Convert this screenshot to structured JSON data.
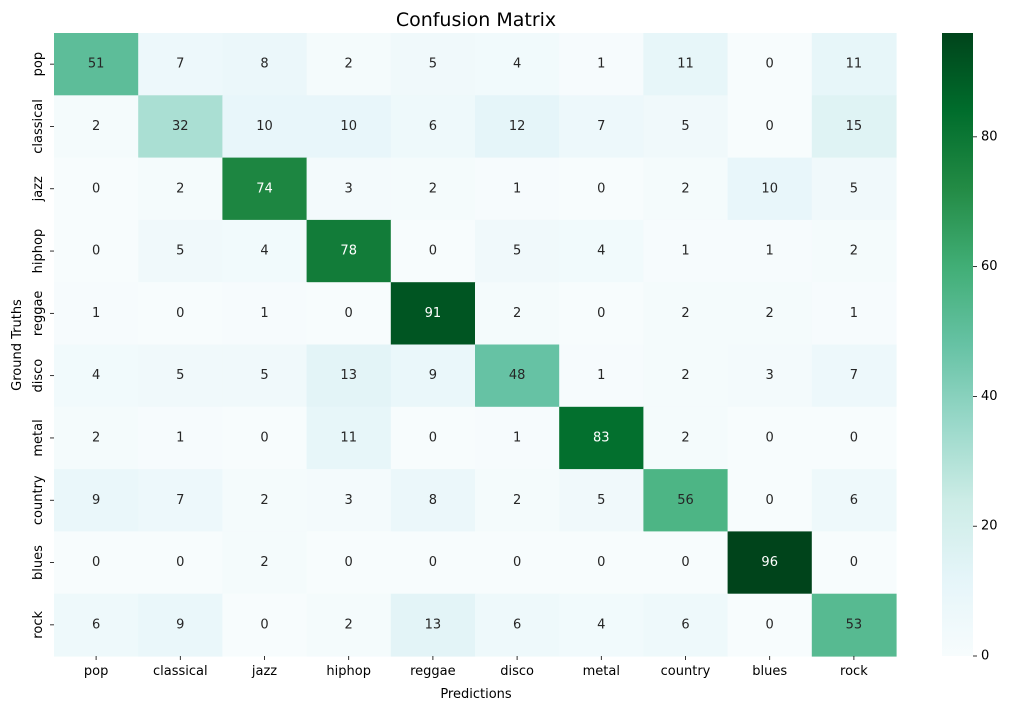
{
  "chart_data": {
    "type": "heatmap",
    "title": "Confusion Matrix",
    "xlabel": "Predictions",
    "ylabel": "Ground Truths",
    "x_categories": [
      "pop",
      "classical",
      "jazz",
      "hiphop",
      "reggae",
      "disco",
      "metal",
      "country",
      "blues",
      "rock"
    ],
    "y_categories": [
      "pop",
      "classical",
      "jazz",
      "hiphop",
      "reggae",
      "disco",
      "metal",
      "country",
      "blues",
      "rock"
    ],
    "values": [
      [
        51,
        7,
        8,
        2,
        5,
        4,
        1,
        11,
        0,
        11
      ],
      [
        2,
        32,
        10,
        10,
        6,
        12,
        7,
        5,
        0,
        15
      ],
      [
        0,
        2,
        74,
        3,
        2,
        1,
        0,
        2,
        10,
        5
      ],
      [
        0,
        5,
        4,
        78,
        0,
        5,
        4,
        1,
        1,
        2
      ],
      [
        1,
        0,
        1,
        0,
        91,
        2,
        0,
        2,
        2,
        1
      ],
      [
        4,
        5,
        5,
        13,
        9,
        48,
        1,
        2,
        3,
        7
      ],
      [
        2,
        1,
        0,
        11,
        0,
        1,
        83,
        2,
        0,
        0
      ],
      [
        9,
        7,
        2,
        3,
        8,
        2,
        5,
        56,
        0,
        6
      ],
      [
        0,
        0,
        2,
        0,
        0,
        0,
        0,
        0,
        96,
        0
      ],
      [
        6,
        9,
        0,
        2,
        13,
        6,
        4,
        6,
        0,
        53
      ]
    ],
    "colormap": "BuGn",
    "colorbar": {
      "range": [
        0,
        96
      ],
      "ticks": [
        0,
        20,
        40,
        60,
        80
      ]
    },
    "annotations": true,
    "grid": false
  }
}
